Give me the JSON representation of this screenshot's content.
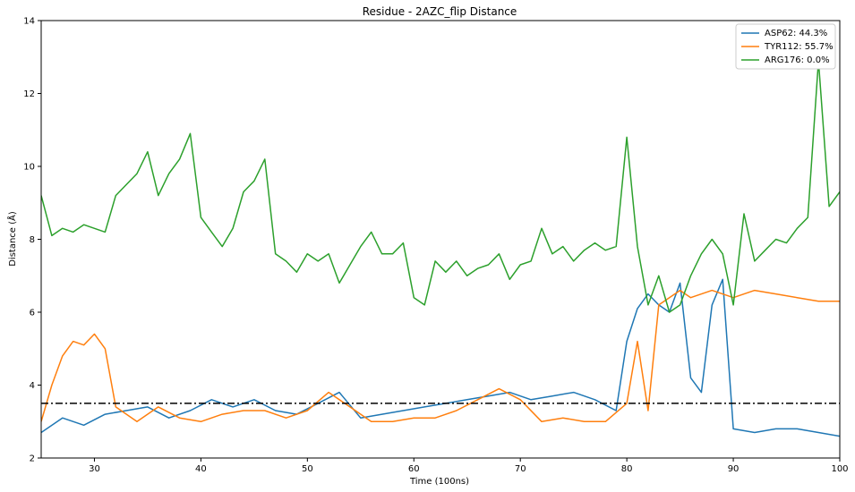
{
  "chart_data": {
    "type": "line",
    "title": "Residue - 2AZC_flip Distance",
    "xlabel": "Time (100ns)",
    "ylabel": "Distance (Å)",
    "xlim": [
      25,
      100
    ],
    "ylim": [
      2,
      14
    ],
    "xticks": [
      "30",
      "40",
      "50",
      "60",
      "70",
      "80",
      "90",
      "100"
    ],
    "yticks": [
      "2",
      "4",
      "6",
      "8",
      "10",
      "12",
      "14"
    ],
    "legend_position": "top-right",
    "grid": false,
    "threshold": 3.5,
    "series": [
      {
        "name": "ASP62: 44.3%",
        "color": "#1f77b4",
        "x": [
          25,
          27,
          29,
          31,
          33,
          35,
          37,
          39,
          41,
          43,
          45,
          47,
          49,
          51,
          53,
          55,
          57,
          59,
          61,
          63,
          65,
          67,
          69,
          71,
          73,
          75,
          77,
          79,
          80,
          81,
          82,
          83,
          84,
          85,
          86,
          87,
          88,
          89,
          90,
          92,
          94,
          96,
          98,
          100
        ],
        "y": [
          2.7,
          3.1,
          2.9,
          3.2,
          3.3,
          3.4,
          3.1,
          3.3,
          3.6,
          3.4,
          3.6,
          3.3,
          3.2,
          3.5,
          3.8,
          3.1,
          3.2,
          3.3,
          3.4,
          3.5,
          3.6,
          3.7,
          3.8,
          3.6,
          3.7,
          3.8,
          3.6,
          3.3,
          5.2,
          6.1,
          6.5,
          6.2,
          6.0,
          6.8,
          4.2,
          3.8,
          6.2,
          6.9,
          2.8,
          2.7,
          2.8,
          2.8,
          2.7,
          2.6
        ]
      },
      {
        "name": "TYR112: 55.7%",
        "color": "#ff7f0e",
        "x": [
          25,
          26,
          27,
          28,
          29,
          30,
          31,
          32,
          34,
          36,
          38,
          40,
          42,
          44,
          46,
          48,
          50,
          52,
          54,
          56,
          58,
          60,
          62,
          64,
          66,
          68,
          70,
          72,
          74,
          76,
          78,
          80,
          81,
          82,
          83,
          84,
          85,
          86,
          88,
          90,
          92,
          94,
          96,
          98,
          100
        ],
        "y": [
          3.0,
          4.0,
          4.8,
          5.2,
          5.1,
          5.4,
          5.0,
          3.4,
          3.0,
          3.4,
          3.1,
          3.0,
          3.2,
          3.3,
          3.3,
          3.1,
          3.3,
          3.8,
          3.4,
          3.0,
          3.0,
          3.1,
          3.1,
          3.3,
          3.6,
          3.9,
          3.6,
          3.0,
          3.1,
          3.0,
          3.0,
          3.5,
          5.2,
          3.3,
          6.2,
          6.4,
          6.6,
          6.4,
          6.6,
          6.4,
          6.6,
          6.5,
          6.4,
          6.3,
          6.3
        ]
      },
      {
        "name": "ARG176: 0.0%",
        "color": "#2ca02c",
        "x": [
          25,
          26,
          27,
          28,
          29,
          30,
          31,
          32,
          33,
          34,
          35,
          36,
          37,
          38,
          39,
          40,
          41,
          42,
          43,
          44,
          45,
          46,
          47,
          48,
          49,
          50,
          51,
          52,
          53,
          54,
          55,
          56,
          57,
          58,
          59,
          60,
          61,
          62,
          63,
          64,
          65,
          66,
          67,
          68,
          69,
          70,
          71,
          72,
          73,
          74,
          75,
          76,
          77,
          78,
          79,
          80,
          81,
          82,
          83,
          84,
          85,
          86,
          87,
          88,
          89,
          90,
          91,
          92,
          93,
          94,
          95,
          96,
          97,
          98,
          99,
          100
        ],
        "y": [
          9.2,
          8.1,
          8.3,
          8.2,
          8.4,
          8.3,
          8.2,
          9.2,
          9.5,
          9.8,
          10.4,
          9.2,
          9.8,
          10.2,
          10.9,
          8.6,
          8.2,
          7.8,
          8.3,
          9.3,
          9.6,
          10.2,
          7.6,
          7.4,
          7.1,
          7.6,
          7.4,
          7.6,
          6.8,
          7.3,
          7.8,
          8.2,
          7.6,
          7.6,
          7.9,
          6.4,
          6.2,
          7.4,
          7.1,
          7.4,
          7.0,
          7.2,
          7.3,
          7.6,
          6.9,
          7.3,
          7.4,
          8.3,
          7.6,
          7.8,
          7.4,
          7.7,
          7.9,
          7.7,
          7.8,
          10.8,
          7.8,
          6.2,
          7.0,
          6.0,
          6.2,
          7.0,
          7.6,
          8.0,
          7.6,
          6.2,
          8.7,
          7.4,
          7.7,
          8.0,
          7.9,
          8.3,
          8.6,
          12.9,
          8.9,
          9.3
        ]
      }
    ]
  }
}
